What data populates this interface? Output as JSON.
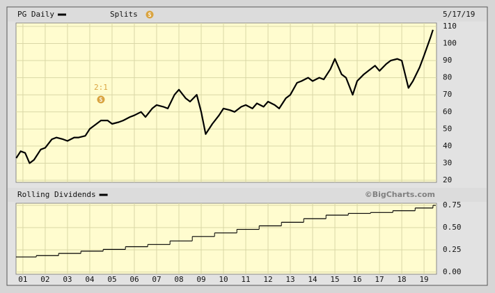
{
  "chart_data": [
    {
      "type": "line",
      "date": "5/17/19",
      "splits": {
        "label": "Splits",
        "icon": "S",
        "color": "#d9a441",
        "events": [
          {
            "x": 2004.5,
            "text": "2:1"
          }
        ]
      },
      "series": [
        {
          "name": "PG Daily",
          "color": "#000000",
          "x": [
            2000.7,
            2000.9,
            2001.1,
            2001.3,
            2001.5,
            2001.8,
            2002.0,
            2002.3,
            2002.5,
            2002.8,
            2003.0,
            2003.3,
            2003.5,
            2003.8,
            2004.0,
            2004.3,
            2004.5,
            2004.8,
            2005.0,
            2005.3,
            2005.5,
            2005.8,
            2006.0,
            2006.3,
            2006.5,
            2006.8,
            2007.0,
            2007.3,
            2007.5,
            2007.8,
            2008.0,
            2008.3,
            2008.5,
            2008.8,
            2009.0,
            2009.2,
            2009.5,
            2009.8,
            2010.0,
            2010.3,
            2010.5,
            2010.8,
            2011.0,
            2011.3,
            2011.5,
            2011.8,
            2012.0,
            2012.3,
            2012.5,
            2012.8,
            2013.0,
            2013.3,
            2013.5,
            2013.8,
            2014.0,
            2014.3,
            2014.5,
            2014.8,
            2015.0,
            2015.3,
            2015.5,
            2015.8,
            2016.0,
            2016.3,
            2016.5,
            2016.8,
            2017.0,
            2017.3,
            2017.5,
            2017.8,
            2018.0,
            2018.3,
            2018.5,
            2018.8,
            2019.0,
            2019.3,
            2019.4
          ],
          "values": [
            33,
            37,
            36,
            30,
            32,
            38,
            39,
            44,
            45,
            44,
            43,
            45,
            45,
            46,
            50,
            53,
            55,
            55,
            53,
            54,
            55,
            57,
            58,
            60,
            57,
            62,
            64,
            63,
            62,
            70,
            73,
            68,
            66,
            70,
            60,
            47,
            53,
            58,
            62,
            61,
            60,
            63,
            64,
            62,
            65,
            63,
            66,
            64,
            62,
            68,
            70,
            77,
            78,
            80,
            78,
            80,
            79,
            85,
            91,
            82,
            80,
            70,
            78,
            82,
            84,
            87,
            84,
            88,
            90,
            91,
            90,
            74,
            78,
            86,
            93,
            104,
            108
          ]
        }
      ],
      "xlim": [
        2000.69,
        2019.56
      ],
      "xticks": [
        2001,
        2002,
        2003,
        2004,
        2005,
        2006,
        2007,
        2008,
        2009,
        2010,
        2011,
        2012,
        2013,
        2014,
        2015,
        2016,
        2017,
        2018,
        2019
      ],
      "ylim": [
        18.8,
        112
      ],
      "yticks": [
        20,
        30,
        40,
        50,
        60,
        70,
        80,
        90,
        100,
        110
      ],
      "grid": true
    },
    {
      "type": "step",
      "source": "©BigCharts.com",
      "series": [
        {
          "name": "Rolling Dividends",
          "color": "#000000",
          "x": [
            2000.69,
            2001.6,
            2002.6,
            2003.6,
            2004.6,
            2005.6,
            2006.6,
            2007.6,
            2008.6,
            2009.6,
            2010.6,
            2011.6,
            2012.6,
            2013.6,
            2014.6,
            2015.6,
            2016.6,
            2017.6,
            2018.6,
            2019.4
          ],
          "values": [
            0.17,
            0.185,
            0.21,
            0.235,
            0.255,
            0.285,
            0.31,
            0.35,
            0.4,
            0.44,
            0.48,
            0.52,
            0.56,
            0.6,
            0.64,
            0.66,
            0.67,
            0.69,
            0.72,
            0.75
          ]
        }
      ],
      "xlim": [
        2000.69,
        2019.56
      ],
      "xticks": [
        {
          "value": 2001,
          "label": "01"
        },
        {
          "value": 2002,
          "label": "02"
        },
        {
          "value": 2003,
          "label": "03"
        },
        {
          "value": 2004,
          "label": "04"
        },
        {
          "value": 2005,
          "label": "05"
        },
        {
          "value": 2006,
          "label": "06"
        },
        {
          "value": 2007,
          "label": "07"
        },
        {
          "value": 2008,
          "label": "08"
        },
        {
          "value": 2009,
          "label": "09"
        },
        {
          "value": 2010,
          "label": "10"
        },
        {
          "value": 2011,
          "label": "11"
        },
        {
          "value": 2012,
          "label": "12"
        },
        {
          "value": 2013,
          "label": "13"
        },
        {
          "value": 2014,
          "label": "14"
        },
        {
          "value": 2015,
          "label": "15"
        },
        {
          "value": 2016,
          "label": "16"
        },
        {
          "value": 2017,
          "label": "17"
        },
        {
          "value": 2018,
          "label": "18"
        },
        {
          "value": 2019,
          "label": "19"
        }
      ],
      "ylim": [
        -0.024,
        0.774
      ],
      "yticks": [
        {
          "value": 0,
          "label": "0.00"
        },
        {
          "value": 0.25,
          "label": "0.25"
        },
        {
          "value": 0.5,
          "label": "0.50"
        },
        {
          "value": 0.75,
          "label": "0.75"
        }
      ],
      "grid": true
    }
  ]
}
